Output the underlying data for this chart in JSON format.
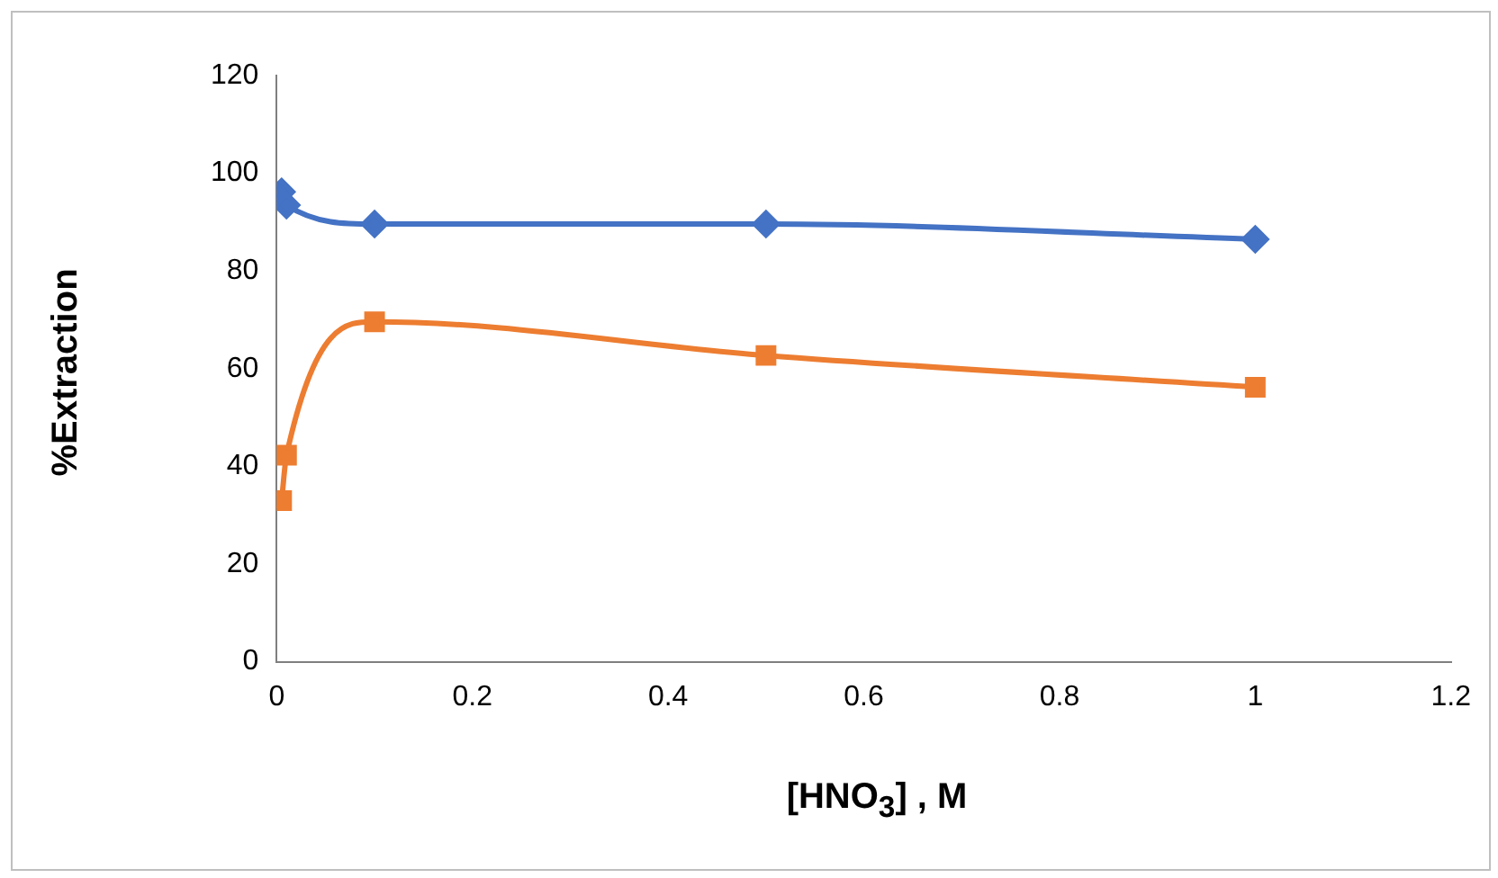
{
  "chart_data": {
    "type": "line",
    "xlabel": "[HNO$_{3}$] , M",
    "ylabel": "%Extraction",
    "xlim": [
      0,
      1.2
    ],
    "xticks": [
      0,
      0.2,
      0.4,
      0.6,
      0.8,
      1,
      1.2
    ],
    "ylim": [
      0,
      120
    ],
    "yticks": [
      0,
      20,
      40,
      60,
      80,
      100,
      120
    ],
    "grid": false,
    "legend": false,
    "series": [
      {
        "color": "#4472c4",
        "marker": "diamond",
        "x": [
          0.005,
          0.01,
          0.1,
          0.5,
          1
        ],
        "values": [
          96.2,
          93.5,
          89.6,
          89.6,
          86.5
        ]
      },
      {
        "color": "#ed7d31",
        "marker": "square",
        "x": [
          0.005,
          0.01,
          0.1,
          0.5,
          1
        ],
        "values": [
          33,
          42.3,
          69.6,
          62.7,
          56.2
        ]
      }
    ]
  }
}
